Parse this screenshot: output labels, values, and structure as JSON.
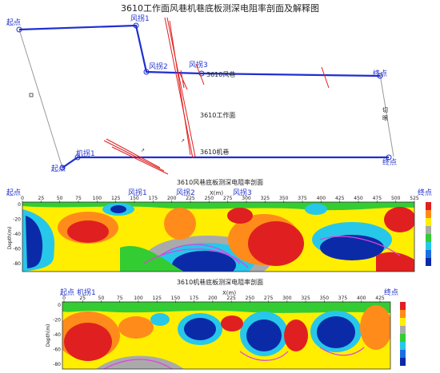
{
  "title": "3610工作面风巷机巷底板测深电阻率剖面及解释图",
  "plan": {
    "start": "起点",
    "end": "终点",
    "fengguai1": "风拐1",
    "fengguai2": "风拐2",
    "fengguai3": "风拐3",
    "fengxiang": "3610风巷",
    "gongzuomian": "3610工作面",
    "jixiang": "3610机巷",
    "jiguai1": "机拐1",
    "qiean_1": "切",
    "qiean_2": "眼"
  },
  "section1": {
    "title": "3610风巷底板测深电阻率剖面",
    "x_axis_label": "X(m)",
    "y_axis_label": "Depth(m)",
    "start": "起点",
    "end": "终点",
    "fengguai1": "风拐1",
    "fengguai2": "风拐2",
    "fengguai3": "风拐3",
    "xticks": [
      "0",
      "25",
      "50",
      "75",
      "100",
      "125",
      "150",
      "175",
      "200",
      "225",
      "250",
      "275",
      "300",
      "325",
      "350",
      "375",
      "400",
      "425",
      "450",
      "475",
      "500",
      "525"
    ],
    "yticks": [
      "0",
      "-20",
      "-40",
      "-60",
      "-80"
    ]
  },
  "section2": {
    "title": "3610机巷底板测深电阻率剖面",
    "x_axis_label": "X(m)",
    "y_axis_label": "Depth(m)",
    "start": "起点",
    "jiguai1": "机拐1",
    "end": "终点",
    "xticks": [
      "0",
      "25",
      "50",
      "75",
      "100",
      "125",
      "150",
      "175",
      "200",
      "225",
      "250",
      "275",
      "300",
      "325",
      "350",
      "375",
      "400",
      "425"
    ],
    "yticks": [
      "0",
      "-20",
      "-40",
      "-60",
      "-80"
    ]
  },
  "colors": {
    "blue": "#2233cc",
    "red": "#e02020",
    "navy": "#0b2aa8",
    "cyan": "#27c7ea",
    "green": "#33cc33",
    "yellow": "#ffee00",
    "orange": "#ff8c1a"
  }
}
